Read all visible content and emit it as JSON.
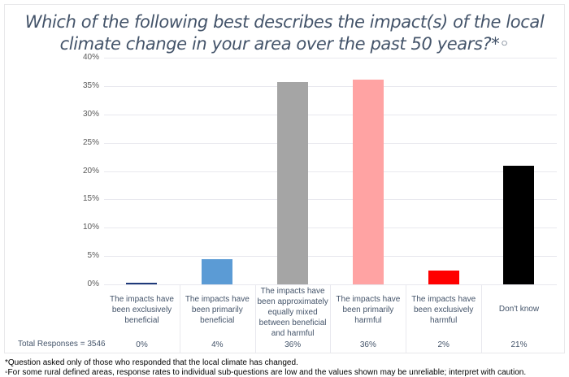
{
  "chart_data": {
    "type": "bar",
    "title": "Which of the following best describes the impact(s) of the local climate change in your area over the past 50 years?*◦",
    "xlabel": "",
    "ylabel": "",
    "ylim": [
      0,
      40
    ],
    "yticks": [
      "40%",
      "35%",
      "30%",
      "25%",
      "20%",
      "15%",
      "10%",
      "5%",
      "0%"
    ],
    "grid": true,
    "legend": "none",
    "categories": [
      "The impacts have been exclusively beneficial",
      "The impacts have been primarily beneficial",
      "The impacts have been approximately equally mixed between beneficial and harmful",
      "The impacts have been primarily harmful",
      "The impacts have been exclusively harmful",
      "Don't know"
    ],
    "values": [
      0.3,
      4.4,
      35.7,
      36.1,
      2.4,
      21.0
    ],
    "value_labels": [
      "0%",
      "4%",
      "36%",
      "36%",
      "2%",
      "21%"
    ],
    "colors": [
      "#1f3a7a",
      "#5b9bd5",
      "#a5a5a5",
      "#ffa3a3",
      "#ff0000",
      "#000000"
    ]
  },
  "title_line1": "Which of the following best describes the impact(s) of the local",
  "title_line2": "climate change in your area over the past 50 years?*◦",
  "total_responses": "Total Responses =  3546",
  "footnote1": "*Question asked only of those who responded that the local climate has changed.",
  "footnote2": "◦For some rural defined areas, response rates to individual sub-questions are low and the values shown may be unreliable; interpret with caution."
}
